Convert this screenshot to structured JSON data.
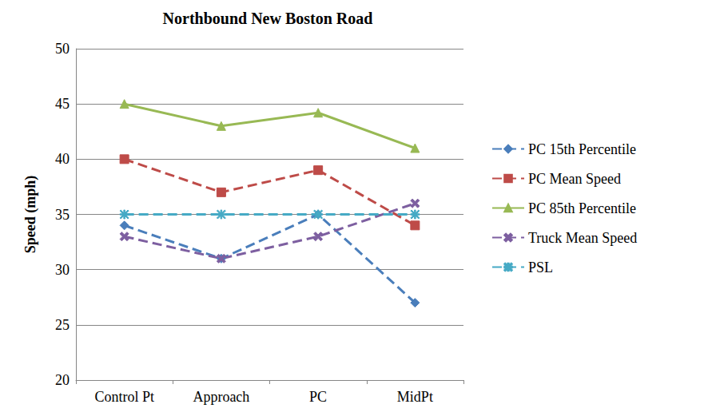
{
  "chart_data": {
    "type": "line",
    "title": "Northbound New Boston Road",
    "y_label": "Speed (mph)",
    "categories": [
      "Control Pt",
      "Approach",
      "PC",
      "MidPt"
    ],
    "series": [
      {
        "name": "PC 15th Percentile",
        "color": "#4a7ebb",
        "marker": "diamond",
        "line_style": "dashed",
        "values": [
          34,
          31,
          35,
          27
        ]
      },
      {
        "name": "PC Mean Speed",
        "color": "#be4b48",
        "marker": "square",
        "line_style": "dashed",
        "values": [
          40,
          37,
          39,
          34
        ]
      },
      {
        "name": "PC 85th Percentile",
        "color": "#98b954",
        "marker": "triangle",
        "line_style": "solid",
        "values": [
          45,
          43,
          44.2,
          41
        ]
      },
      {
        "name": "Truck Mean Speed",
        "color": "#7d5fa0",
        "marker": "x",
        "line_style": "dashed",
        "values": [
          33,
          31,
          33,
          36
        ]
      },
      {
        "name": "PSL",
        "color": "#46aac5",
        "marker": "asterisk",
        "line_style": "dashed",
        "values": [
          35,
          35,
          35,
          35
        ]
      }
    ],
    "ylim": [
      20,
      50
    ],
    "yticks": [
      20,
      25,
      30,
      35,
      40,
      45,
      50
    ],
    "grid": true,
    "legend": "right"
  }
}
